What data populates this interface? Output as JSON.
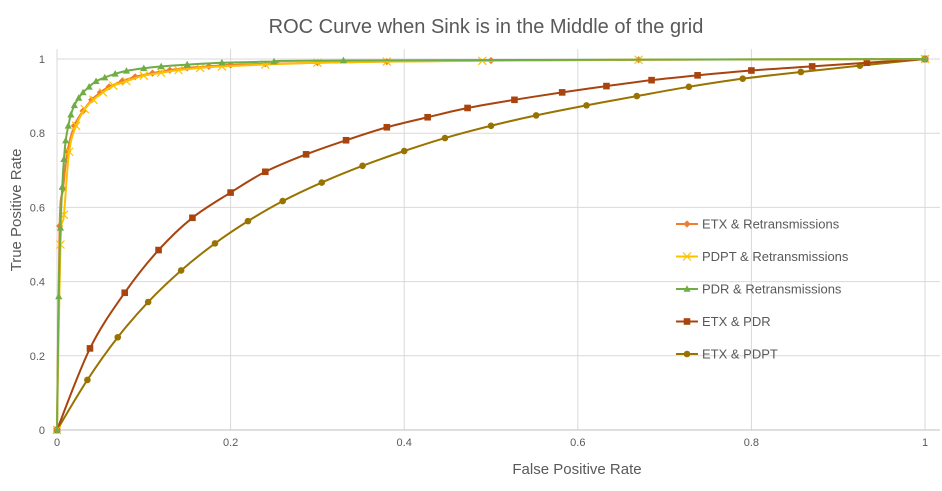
{
  "chart_data": {
    "type": "line",
    "title": "ROC Curve when Sink is in the Middle of the grid",
    "xlabel": "False Positive Rate",
    "ylabel": "True Positive Rate",
    "xlim": [
      0,
      1
    ],
    "ylim": [
      0,
      1
    ],
    "x_ticks": [
      "0",
      "0.2",
      "0.4",
      "0.6",
      "0.8",
      "1"
    ],
    "y_ticks": [
      "0",
      "0.2",
      "0.4",
      "0.6",
      "0.8",
      "1"
    ],
    "grid": true,
    "legend_position": "right",
    "series": [
      {
        "name": "ETX & Retransmissions",
        "color": "#ED7D31",
        "marker": "diamond",
        "points": [
          [
            0,
            0
          ],
          [
            0.003,
            0.55
          ],
          [
            0.007,
            0.65
          ],
          [
            0.012,
            0.75
          ],
          [
            0.02,
            0.82
          ],
          [
            0.03,
            0.86
          ],
          [
            0.04,
            0.89
          ],
          [
            0.05,
            0.91
          ],
          [
            0.06,
            0.925
          ],
          [
            0.075,
            0.94
          ],
          [
            0.09,
            0.952
          ],
          [
            0.11,
            0.962
          ],
          [
            0.13,
            0.97
          ],
          [
            0.15,
            0.976
          ],
          [
            0.175,
            0.98
          ],
          [
            0.2,
            0.984
          ],
          [
            0.24,
            0.987
          ],
          [
            0.3,
            0.99
          ],
          [
            0.38,
            0.993
          ],
          [
            0.5,
            0.996
          ],
          [
            0.67,
            0.998
          ],
          [
            1,
            1
          ]
        ]
      },
      {
        "name": "PDPT & Retransmissions",
        "color": "#FFC000",
        "marker": "cross",
        "points": [
          [
            0,
            0
          ],
          [
            0.004,
            0.5
          ],
          [
            0.008,
            0.58
          ],
          [
            0.014,
            0.75
          ],
          [
            0.022,
            0.82
          ],
          [
            0.032,
            0.865
          ],
          [
            0.042,
            0.89
          ],
          [
            0.053,
            0.91
          ],
          [
            0.065,
            0.928
          ],
          [
            0.08,
            0.94
          ],
          [
            0.1,
            0.955
          ],
          [
            0.12,
            0.963
          ],
          [
            0.14,
            0.97
          ],
          [
            0.165,
            0.976
          ],
          [
            0.19,
            0.98
          ],
          [
            0.24,
            0.985
          ],
          [
            0.3,
            0.99
          ],
          [
            0.38,
            0.993
          ],
          [
            0.49,
            0.995
          ],
          [
            0.67,
            0.998
          ],
          [
            1,
            1
          ]
        ]
      },
      {
        "name": "PDR & Retransmissions",
        "color": "#70AD47",
        "marker": "triangle",
        "points": [
          [
            0,
            0
          ],
          [
            0.002,
            0.36
          ],
          [
            0.004,
            0.545
          ],
          [
            0.006,
            0.655
          ],
          [
            0.008,
            0.73
          ],
          [
            0.01,
            0.78
          ],
          [
            0.013,
            0.82
          ],
          [
            0.016,
            0.85
          ],
          [
            0.02,
            0.875
          ],
          [
            0.025,
            0.895
          ],
          [
            0.03,
            0.91
          ],
          [
            0.037,
            0.925
          ],
          [
            0.045,
            0.94
          ],
          [
            0.055,
            0.95
          ],
          [
            0.067,
            0.96
          ],
          [
            0.08,
            0.968
          ],
          [
            0.1,
            0.975
          ],
          [
            0.12,
            0.98
          ],
          [
            0.15,
            0.985
          ],
          [
            0.19,
            0.99
          ],
          [
            0.25,
            0.993
          ],
          [
            0.33,
            0.996
          ],
          [
            1,
            1
          ]
        ]
      },
      {
        "name": "ETX & PDR",
        "color": "#A9440F",
        "marker": "square",
        "points": [
          [
            0,
            0
          ],
          [
            0.038,
            0.22
          ],
          [
            0.078,
            0.37
          ],
          [
            0.117,
            0.485
          ],
          [
            0.156,
            0.572
          ],
          [
            0.2,
            0.64
          ],
          [
            0.24,
            0.696
          ],
          [
            0.287,
            0.743
          ],
          [
            0.333,
            0.781
          ],
          [
            0.38,
            0.816
          ],
          [
            0.427,
            0.843
          ],
          [
            0.473,
            0.868
          ],
          [
            0.527,
            0.89
          ],
          [
            0.582,
            0.91
          ],
          [
            0.633,
            0.927
          ],
          [
            0.685,
            0.943
          ],
          [
            0.738,
            0.956
          ],
          [
            0.8,
            0.969
          ],
          [
            0.87,
            0.98
          ],
          [
            0.933,
            0.99
          ],
          [
            1,
            1
          ]
        ]
      },
      {
        "name": "ETX & PDPT",
        "color": "#997300",
        "marker": "circle",
        "points": [
          [
            0,
            0
          ],
          [
            0.035,
            0.135
          ],
          [
            0.07,
            0.25
          ],
          [
            0.105,
            0.345
          ],
          [
            0.143,
            0.43
          ],
          [
            0.182,
            0.503
          ],
          [
            0.22,
            0.563
          ],
          [
            0.26,
            0.617
          ],
          [
            0.305,
            0.667
          ],
          [
            0.352,
            0.712
          ],
          [
            0.4,
            0.752
          ],
          [
            0.447,
            0.787
          ],
          [
            0.5,
            0.82
          ],
          [
            0.552,
            0.848
          ],
          [
            0.61,
            0.875
          ],
          [
            0.668,
            0.9
          ],
          [
            0.728,
            0.925
          ],
          [
            0.79,
            0.947
          ],
          [
            0.857,
            0.965
          ],
          [
            0.925,
            0.982
          ],
          [
            1,
            1
          ]
        ]
      }
    ]
  }
}
